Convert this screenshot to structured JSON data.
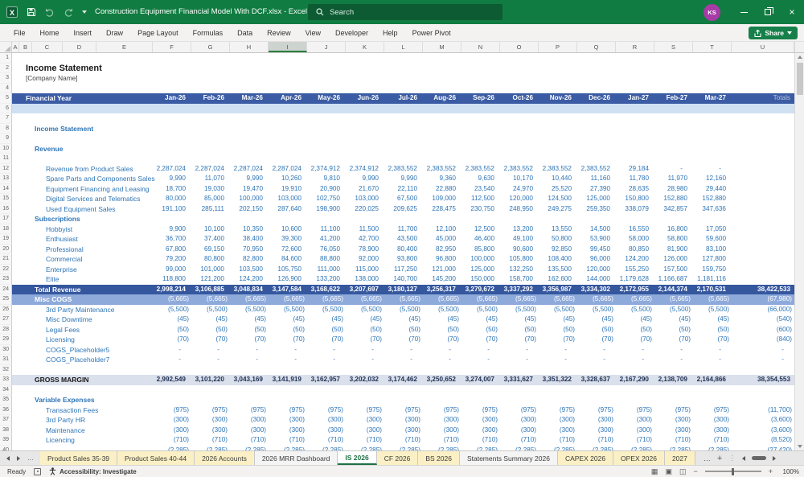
{
  "window": {
    "title": "Construction Equipment Financial Model With DCF.xlsx  -  Excel",
    "search_placeholder": "Search",
    "avatar_initials": "KS"
  },
  "menu": {
    "items": [
      "File",
      "Home",
      "Insert",
      "Draw",
      "Page Layout",
      "Formulas",
      "Data",
      "Review",
      "View",
      "Developer",
      "Help",
      "Power Pivot"
    ],
    "share_label": "Share"
  },
  "grid": {
    "column_letters": [
      "A",
      "B",
      "C",
      "D",
      "E",
      "F",
      "G",
      "H",
      "I",
      "J",
      "K",
      "L",
      "M",
      "N",
      "O",
      "P",
      "Q",
      "R",
      "S",
      "T",
      "U"
    ],
    "selected_column": "I",
    "row_count": 40,
    "header": {
      "label": "Financial Year",
      "months": [
        "Jan-26",
        "Feb-26",
        "Mar-26",
        "Apr-26",
        "May-26",
        "Jun-26",
        "Jul-26",
        "Aug-26",
        "Sep-26",
        "Oct-26",
        "Nov-26",
        "Dec-26",
        "Jan-27",
        "Feb-27",
        "Mar-27"
      ],
      "totals_label": "Totals"
    },
    "rows": [
      {
        "n": 2,
        "t": "title",
        "label": "Income Statement"
      },
      {
        "n": 3,
        "t": "subtitle",
        "label": "[Company Name]"
      },
      {
        "n": 5,
        "t": "header",
        "label": "Financial Year"
      },
      {
        "n": 6,
        "t": "band",
        "label": ""
      },
      {
        "n": 8,
        "t": "section",
        "label": "Income Statement"
      },
      {
        "n": 10,
        "t": "section",
        "label": "Revenue"
      },
      {
        "n": 12,
        "t": "item",
        "label": "Revenue from Product Sales",
        "v": [
          "2,287,024",
          "2,287,024",
          "2,287,024",
          "2,287,024",
          "2,374,912",
          "2,374,912",
          "2,383,552",
          "2,383,552",
          "2,383,552",
          "2,383,552",
          "2,383,552",
          "2,383,552",
          "29,184",
          "-",
          "-"
        ],
        "total": ""
      },
      {
        "n": 13,
        "t": "item",
        "label": "Spare Parts and Components Sales",
        "v": [
          "9,990",
          "11,070",
          "9,990",
          "10,260",
          "9,810",
          "9,990",
          "9,990",
          "9,360",
          "9,630",
          "10,170",
          "10,440",
          "11,160",
          "11,780",
          "11,970",
          "12,160"
        ],
        "total": ""
      },
      {
        "n": 14,
        "t": "item",
        "label": "Equipment Financing and Leasing",
        "v": [
          "18,700",
          "19,030",
          "19,470",
          "19,910",
          "20,900",
          "21,670",
          "22,110",
          "22,880",
          "23,540",
          "24,970",
          "25,520",
          "27,390",
          "28,635",
          "28,980",
          "29,440"
        ],
        "total": ""
      },
      {
        "n": 15,
        "t": "item",
        "label": "Digital Services and Telematics",
        "v": [
          "80,000",
          "85,000",
          "100,000",
          "103,000",
          "102,750",
          "103,000",
          "67,500",
          "109,000",
          "112,500",
          "120,000",
          "124,500",
          "125,000",
          "150,800",
          "152,880",
          "152,880"
        ],
        "total": ""
      },
      {
        "n": 16,
        "t": "item",
        "label": "Used Equipment Sales",
        "v": [
          "191,100",
          "285,111",
          "202,150",
          "287,640",
          "198,900",
          "220,025",
          "209,625",
          "228,475",
          "230,750",
          "248,950",
          "249,275",
          "259,350",
          "338,079",
          "342,857",
          "347,636"
        ],
        "total": ""
      },
      {
        "n": 17,
        "t": "section",
        "label": "Subscriptions"
      },
      {
        "n": 18,
        "t": "item",
        "label": "Hobbyist",
        "v": [
          "9,900",
          "10,100",
          "10,350",
          "10,600",
          "11,100",
          "11,500",
          "11,700",
          "12,100",
          "12,500",
          "13,200",
          "13,550",
          "14,500",
          "16,550",
          "16,800",
          "17,050"
        ],
        "total": ""
      },
      {
        "n": 19,
        "t": "item",
        "label": "Enthusiast",
        "v": [
          "36,700",
          "37,400",
          "38,400",
          "39,300",
          "41,200",
          "42,700",
          "43,500",
          "45,000",
          "46,400",
          "49,100",
          "50,800",
          "53,900",
          "58,000",
          "58,800",
          "59,600"
        ],
        "total": ""
      },
      {
        "n": 20,
        "t": "item",
        "label": "Professional",
        "v": [
          "67,800",
          "69,150",
          "70,950",
          "72,600",
          "76,050",
          "78,900",
          "80,400",
          "82,950",
          "85,800",
          "90,600",
          "92,850",
          "99,450",
          "80,850",
          "81,900",
          "83,100"
        ],
        "total": ""
      },
      {
        "n": 21,
        "t": "item",
        "label": "Commercial",
        "v": [
          "79,200",
          "80,800",
          "82,800",
          "84,600",
          "88,800",
          "92,000",
          "93,800",
          "96,800",
          "100,000",
          "105,800",
          "108,400",
          "96,000",
          "124,200",
          "126,000",
          "127,800"
        ],
        "total": ""
      },
      {
        "n": 22,
        "t": "item",
        "label": "Enterprise",
        "v": [
          "99,000",
          "101,000",
          "103,500",
          "105,750",
          "111,000",
          "115,000",
          "117,250",
          "121,000",
          "125,000",
          "132,250",
          "135,500",
          "120,000",
          "155,250",
          "157,500",
          "159,750"
        ],
        "total": ""
      },
      {
        "n": 23,
        "t": "item",
        "label": "Elite",
        "v": [
          "118,800",
          "121,200",
          "124,200",
          "126,900",
          "133,200",
          "138,000",
          "140,700",
          "145,200",
          "150,000",
          "158,700",
          "162,600",
          "144,000",
          "1,179,628",
          "1,166,687",
          "1,181,116"
        ],
        "total": ""
      },
      {
        "n": 24,
        "t": "dark",
        "label": "Total Revenue",
        "v": [
          "2,998,214",
          "3,106,885",
          "3,048,834",
          "3,147,584",
          "3,168,622",
          "3,207,697",
          "3,180,127",
          "3,256,317",
          "3,279,672",
          "3,337,292",
          "3,356,987",
          "3,334,302",
          "2,172,955",
          "2,144,374",
          "2,170,531"
        ],
        "total": "38,422,533"
      },
      {
        "n": 25,
        "t": "mid",
        "label": "Misc COGS",
        "v": [
          "(5,665)",
          "(5,665)",
          "(5,665)",
          "(5,665)",
          "(5,665)",
          "(5,665)",
          "(5,665)",
          "(5,665)",
          "(5,665)",
          "(5,665)",
          "(5,665)",
          "(5,665)",
          "(5,665)",
          "(5,665)",
          "(5,665)"
        ],
        "total": "(67,980)"
      },
      {
        "n": 26,
        "t": "item",
        "label": "3rd Party Maintenance",
        "v": [
          "(5,500)",
          "(5,500)",
          "(5,500)",
          "(5,500)",
          "(5,500)",
          "(5,500)",
          "(5,500)",
          "(5,500)",
          "(5,500)",
          "(5,500)",
          "(5,500)",
          "(5,500)",
          "(5,500)",
          "(5,500)",
          "(5,500)"
        ],
        "total": "(66,000)"
      },
      {
        "n": 27,
        "t": "item",
        "label": "Misc Downtime",
        "v": [
          "(45)",
          "(45)",
          "(45)",
          "(45)",
          "(45)",
          "(45)",
          "(45)",
          "(45)",
          "(45)",
          "(45)",
          "(45)",
          "(45)",
          "(45)",
          "(45)",
          "(45)"
        ],
        "total": "(540)"
      },
      {
        "n": 28,
        "t": "item",
        "label": "Legal Fees",
        "v": [
          "(50)",
          "(50)",
          "(50)",
          "(50)",
          "(50)",
          "(50)",
          "(50)",
          "(50)",
          "(50)",
          "(50)",
          "(50)",
          "(50)",
          "(50)",
          "(50)",
          "(50)"
        ],
        "total": "(600)"
      },
      {
        "n": 29,
        "t": "item",
        "label": "Licensing",
        "v": [
          "(70)",
          "(70)",
          "(70)",
          "(70)",
          "(70)",
          "(70)",
          "(70)",
          "(70)",
          "(70)",
          "(70)",
          "(70)",
          "(70)",
          "(70)",
          "(70)",
          "(70)"
        ],
        "total": "(840)"
      },
      {
        "n": 30,
        "t": "item",
        "label": "COGS_Placeholder5",
        "v": [
          "-",
          "-",
          "-",
          "-",
          "-",
          "-",
          "-",
          "-",
          "-",
          "-",
          "-",
          "-",
          "-",
          "-",
          "-"
        ],
        "total": "-"
      },
      {
        "n": 31,
        "t": "item",
        "label": "COGS_Placeholder7",
        "v": [
          "-",
          "-",
          "-",
          "-",
          "-",
          "-",
          "-",
          "-",
          "-",
          "-",
          "-",
          "-",
          "-",
          "-",
          "-"
        ],
        "total": "-"
      },
      {
        "n": 33,
        "t": "gray",
        "label": "GROSS MARGIN",
        "v": [
          "2,992,549",
          "3,101,220",
          "3,043,169",
          "3,141,919",
          "3,162,957",
          "3,202,032",
          "3,174,462",
          "3,250,652",
          "3,274,007",
          "3,331,627",
          "3,351,322",
          "3,328,637",
          "2,167,290",
          "2,138,709",
          "2,164,866"
        ],
        "total": "38,354,553"
      },
      {
        "n": 35,
        "t": "section",
        "label": "Variable Expenses"
      },
      {
        "n": 36,
        "t": "item",
        "label": "Transaction Fees",
        "v": [
          "(975)",
          "(975)",
          "(975)",
          "(975)",
          "(975)",
          "(975)",
          "(975)",
          "(975)",
          "(975)",
          "(975)",
          "(975)",
          "(975)",
          "(975)",
          "(975)",
          "(975)"
        ],
        "total": "(11,700)"
      },
      {
        "n": 37,
        "t": "item",
        "label": "3rd Party HR",
        "v": [
          "(300)",
          "(300)",
          "(300)",
          "(300)",
          "(300)",
          "(300)",
          "(300)",
          "(300)",
          "(300)",
          "(300)",
          "(300)",
          "(300)",
          "(300)",
          "(300)",
          "(300)"
        ],
        "total": "(3,600)"
      },
      {
        "n": 38,
        "t": "item",
        "label": "Maintenance",
        "v": [
          "(300)",
          "(300)",
          "(300)",
          "(300)",
          "(300)",
          "(300)",
          "(300)",
          "(300)",
          "(300)",
          "(300)",
          "(300)",
          "(300)",
          "(300)",
          "(300)",
          "(300)"
        ],
        "total": "(3,600)"
      },
      {
        "n": 39,
        "t": "item",
        "label": "Licencing",
        "v": [
          "(710)",
          "(710)",
          "(710)",
          "(710)",
          "(710)",
          "(710)",
          "(710)",
          "(710)",
          "(710)",
          "(710)",
          "(710)",
          "(710)",
          "(710)",
          "(710)",
          "(710)"
        ],
        "total": "(8,520)"
      },
      {
        "n": 40,
        "t": "item",
        "label": "",
        "v": [
          "(2,285)",
          "(2,285)",
          "(2,285)",
          "(2,285)",
          "(2,285)",
          "(2,285)",
          "(2,285)",
          "(2,285)",
          "(2,285)",
          "(2,285)",
          "(2,285)",
          "(2,285)",
          "(2,285)",
          "(2,285)",
          "(2,285)"
        ],
        "total": "(27,420)"
      }
    ]
  },
  "tabs": {
    "items": [
      {
        "label": "Product Sales 35-39",
        "style": "yellow"
      },
      {
        "label": "Product Sales 40-44",
        "style": "yellow"
      },
      {
        "label": "2026 Accounts",
        "style": "yellow"
      },
      {
        "label": "2026 MRR Dashboard",
        "style": "plain"
      },
      {
        "label": "IS 2026",
        "style": "active"
      },
      {
        "label": "CF 2026",
        "style": "yellow"
      },
      {
        "label": "BS 2026",
        "style": "yellow"
      },
      {
        "label": "Statements Summary 2026",
        "style": "plain"
      },
      {
        "label": "CAPEX 2026",
        "style": "yellow"
      },
      {
        "label": "OPEX 2026",
        "style": "yellow"
      },
      {
        "label": "2027",
        "style": "yellow"
      }
    ]
  },
  "status": {
    "ready": "Ready",
    "accessibility": "Accessibility: Investigate",
    "zoom_level": "100%"
  }
}
